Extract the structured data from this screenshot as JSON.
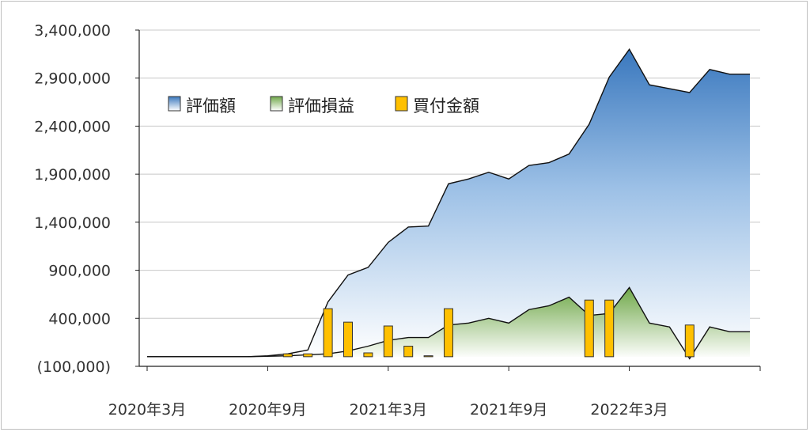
{
  "chart_data": {
    "type": "area",
    "title": "",
    "xlabel": "",
    "ylabel": "",
    "ylim": [
      -100000,
      3400000
    ],
    "yticks": [
      3400000,
      2900000,
      2400000,
      1900000,
      1400000,
      900000,
      400000,
      -100000
    ],
    "ytick_labels": [
      "3,400,000",
      "2,900,000",
      "2,400,000",
      "1,900,000",
      "1,400,000",
      "900,000",
      "400,000",
      "(100,000)"
    ],
    "negative_label_color": "#ff0000",
    "xtick_labels": [
      "2020年3月",
      "2020年9月",
      "2021年3月",
      "2021年9月",
      "2022年3月"
    ],
    "xtick_indices": [
      0,
      6,
      12,
      18,
      24
    ],
    "x": [
      "2020-03",
      "2020-04",
      "2020-05",
      "2020-06",
      "2020-07",
      "2020-08",
      "2020-09",
      "2020-10",
      "2020-11",
      "2020-12",
      "2021-01",
      "2021-02",
      "2021-03",
      "2021-04",
      "2021-05",
      "2021-06",
      "2021-07",
      "2021-08",
      "2021-09",
      "2021-10",
      "2021-11",
      "2021-12",
      "2022-01",
      "2022-02",
      "2022-03",
      "2022-04",
      "2022-05",
      "2022-06",
      "2022-07",
      "2022-08",
      "2022-09"
    ],
    "grid": true,
    "legend_position": "top-left",
    "series": [
      {
        "name": "評価額",
        "type": "area",
        "color_top": "#3a78be",
        "color_bottom": "#ffffff",
        "values": [
          0,
          0,
          0,
          0,
          0,
          0,
          10000,
          30000,
          70000,
          570000,
          850000,
          930000,
          1190000,
          1350000,
          1360000,
          1800000,
          1850000,
          1920000,
          1850000,
          1990000,
          2020000,
          2110000,
          2420000,
          2910000,
          3200000,
          2830000,
          2790000,
          2750000,
          2990000,
          2940000,
          2940000
        ]
      },
      {
        "name": "評価損益",
        "type": "area",
        "color_top": "#70a84a",
        "color_bottom": "#ffffff",
        "values": [
          0,
          0,
          0,
          0,
          0,
          0,
          5000,
          10000,
          20000,
          30000,
          60000,
          110000,
          170000,
          200000,
          200000,
          330000,
          350000,
          400000,
          350000,
          490000,
          530000,
          620000,
          430000,
          450000,
          720000,
          350000,
          310000,
          -20000,
          310000,
          260000,
          260000
        ]
      },
      {
        "name": "買付金額",
        "type": "bar",
        "color": "#ffc000",
        "values": [
          0,
          0,
          0,
          0,
          0,
          0,
          0,
          30000,
          30000,
          500000,
          360000,
          40000,
          320000,
          110000,
          10000,
          500000,
          0,
          0,
          0,
          0,
          0,
          0,
          590000,
          590000,
          0,
          0,
          0,
          330000,
          0,
          0,
          0
        ]
      }
    ]
  }
}
